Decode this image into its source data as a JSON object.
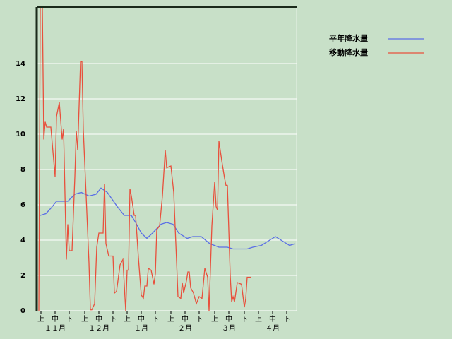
{
  "chart_data": {
    "type": "line",
    "xlim": [
      -1.5,
      182.5
    ],
    "ylim": [
      0,
      17.2
    ],
    "yticks": [
      0,
      2,
      4,
      6,
      8,
      10,
      12,
      14
    ],
    "grid": true,
    "xticks": [
      {
        "value": 1.5,
        "label": "上"
      },
      {
        "value": 11.5,
        "label": "中"
      },
      {
        "value": 21.5,
        "label": "下"
      },
      {
        "value": 32.5,
        "label": "上"
      },
      {
        "value": 42.5,
        "label": "中"
      },
      {
        "value": 52.5,
        "label": "下"
      },
      {
        "value": 62.5,
        "label": "上"
      },
      {
        "value": 72.5,
        "label": "中"
      },
      {
        "value": 82.5,
        "label": "下"
      },
      {
        "value": 93.5,
        "label": "上"
      },
      {
        "value": 103.5,
        "label": "中"
      },
      {
        "value": 113.5,
        "label": "下"
      },
      {
        "value": 124.5,
        "label": "上"
      },
      {
        "value": 134.5,
        "label": "中"
      },
      {
        "value": 145.5,
        "label": "下"
      },
      {
        "value": 155.5,
        "label": "上"
      },
      {
        "value": 165.5,
        "label": "中"
      },
      {
        "value": 175.5,
        "label": "下"
      }
    ],
    "month_labels": [
      {
        "value": 11.5,
        "label": "１１月"
      },
      {
        "value": 42.5,
        "label": "１２月"
      },
      {
        "value": 72.5,
        "label": "１月"
      },
      {
        "value": 103.5,
        "label": "２月"
      },
      {
        "value": 134.5,
        "label": "３月"
      },
      {
        "value": 165.5,
        "label": "４月"
      }
    ],
    "legend": "right",
    "series": [
      {
        "name": "平年降水量",
        "color": "#5a6ee6",
        "x": [
          1,
          5,
          8.5,
          12.5,
          20.5,
          25.5,
          30,
          35.5,
          40.5,
          44,
          48.5,
          55.5,
          60.5,
          65.5,
          68.5,
          72.5,
          76.5,
          80.5,
          86.5,
          90.5,
          95,
          99,
          105,
          109,
          115,
          121,
          127.5,
          133.5,
          137.5,
          147.5,
          151.5,
          157.5,
          163.5,
          167.5,
          171.5,
          177.5,
          181.5
        ],
        "values": [
          5.4,
          5.5,
          5.8,
          6.2,
          6.2,
          6.6,
          6.7,
          6.5,
          6.6,
          6.95,
          6.7,
          5.9,
          5.4,
          5.4,
          5.0,
          4.4,
          4.1,
          4.4,
          4.9,
          5.0,
          4.9,
          4.4,
          4.1,
          4.2,
          4.2,
          3.8,
          3.6,
          3.6,
          3.5,
          3.5,
          3.6,
          3.7,
          4.0,
          4.2,
          4.0,
          3.7,
          3.8
        ]
      },
      {
        "name": "移動降水量",
        "color": "#e8503c",
        "x": [
          0,
          1,
          2.5,
          3.5,
          4.5,
          5.5,
          8.5,
          11.5,
          12.5,
          14.5,
          16.5,
          17.5,
          19.5,
          20.5,
          21.5,
          23.5,
          25.5,
          26.5,
          27.5,
          29.5,
          30.5,
          31.5,
          33.5,
          35.5,
          36.5,
          37.5,
          39.5,
          41,
          42.5,
          45.5,
          46.5,
          47.5,
          49.5,
          52.5,
          53.5,
          55,
          57.5,
          59.5,
          61.5,
          62.5,
          63.5,
          64.5,
          65.5,
          67.5,
          68.5,
          70.5,
          72.5,
          74,
          75,
          76.5,
          77.5,
          79.5,
          81.5,
          82.5,
          83.5,
          85.5,
          87.5,
          89.5,
          90.5,
          93.5,
          95.5,
          97.5,
          98.5,
          100.5,
          101.5,
          102.5,
          104.5,
          105.5,
          106.5,
          107.5,
          109.5,
          111.5,
          113.5,
          115.5,
          117.5,
          119.5,
          120.5,
          122.5,
          124.5,
          125.5,
          126.5,
          127.5,
          129.5,
          131.5,
          132.5,
          133.5,
          135.5,
          136.5,
          137.5,
          138.5,
          140.5,
          143.5,
          145.5,
          146.5,
          147.5,
          150
        ],
        "values": [
          0,
          17.2,
          17.2,
          9.7,
          10.7,
          10.4,
          10.4,
          7.6,
          11.0,
          11.8,
          9.7,
          10.3,
          2.9,
          4.9,
          3.4,
          3.4,
          7.6,
          10.2,
          9.1,
          14.1,
          14.1,
          10.2,
          6.5,
          2.7,
          0.05,
          0.05,
          0.4,
          3.6,
          4.4,
          4.4,
          7.2,
          3.8,
          3.1,
          3.1,
          1.0,
          1.1,
          2.6,
          2.9,
          0,
          2.3,
          2.3,
          6.9,
          6.5,
          5.4,
          5.4,
          3.0,
          0.9,
          0.7,
          1.4,
          1.4,
          2.4,
          2.3,
          1.5,
          2.1,
          4.6,
          4.8,
          6.5,
          9.1,
          8.1,
          8.2,
          6.7,
          2.8,
          0.8,
          0.7,
          1.6,
          1.0,
          1.7,
          2.2,
          2.2,
          1.3,
          1.0,
          0.4,
          0.8,
          0.7,
          2.4,
          1.9,
          0,
          4.8,
          7.3,
          5.9,
          5.7,
          9.6,
          8.5,
          7.5,
          7.1,
          7.1,
          2.0,
          0.5,
          0.8,
          0.5,
          1.6,
          1.5,
          0.2,
          0.7,
          1.9,
          1.9
        ]
      }
    ]
  }
}
